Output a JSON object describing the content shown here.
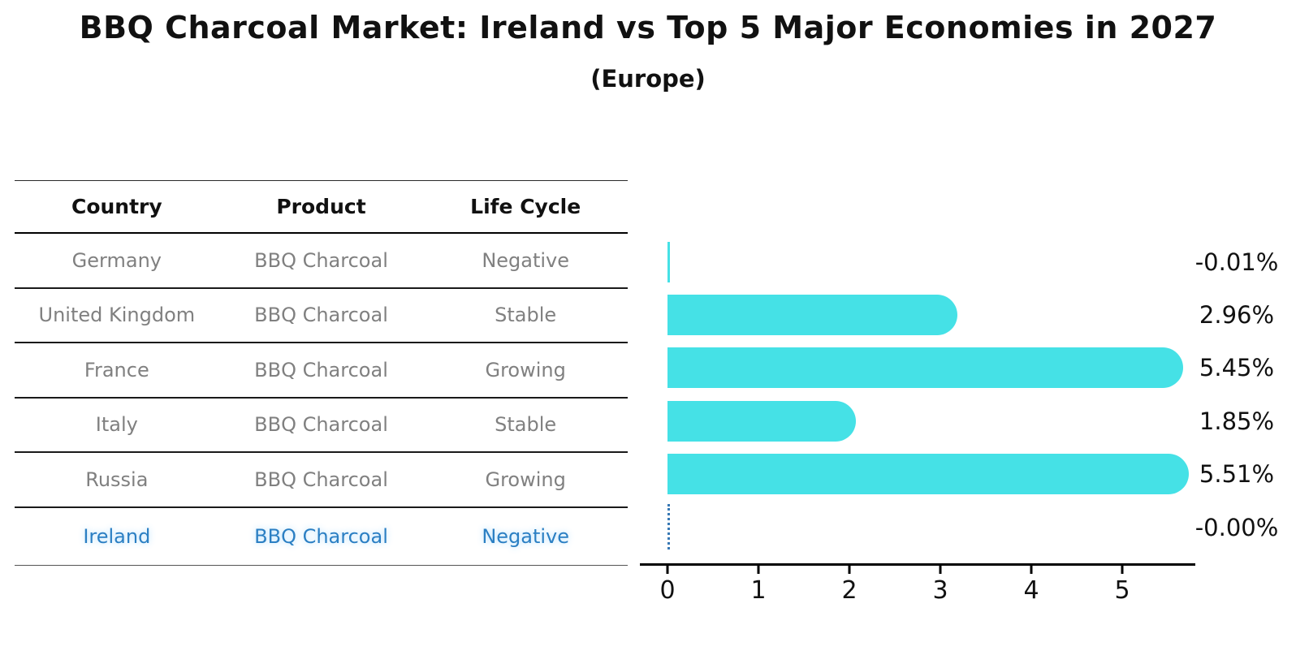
{
  "title": "BBQ Charcoal Market: Ireland vs Top 5 Major Economies in 2027",
  "subtitle": "(Europe)",
  "table": {
    "headers": [
      "Country",
      "Product",
      "Life Cycle"
    ],
    "rows": [
      {
        "country": "Germany",
        "product": "BBQ Charcoal",
        "life_cycle": "Negative"
      },
      {
        "country": "United Kingdom",
        "product": "BBQ Charcoal",
        "life_cycle": "Stable"
      },
      {
        "country": "France",
        "product": "BBQ Charcoal",
        "life_cycle": "Growing"
      },
      {
        "country": "Italy",
        "product": "BBQ Charcoal",
        "life_cycle": "Stable"
      },
      {
        "country": "Russia",
        "product": "BBQ Charcoal",
        "life_cycle": "Growing"
      },
      {
        "country": "Ireland",
        "product": "BBQ Charcoal",
        "life_cycle": "Negative"
      }
    ],
    "highlight_row": "Ireland"
  },
  "chart_data": {
    "type": "bar",
    "orientation": "horizontal",
    "title": "BBQ Charcoal Market: Ireland vs Top 5 Major Economies in 2027",
    "subtitle": "(Europe)",
    "categories": [
      "Germany",
      "United Kingdom",
      "France",
      "Italy",
      "Russia",
      "Ireland"
    ],
    "values": [
      -0.01,
      2.96,
      5.45,
      1.85,
      5.51,
      -0.0
    ],
    "value_labels": [
      "-0.01%",
      "2.96%",
      "5.45%",
      "1.85%",
      "5.51%",
      "-0.00%"
    ],
    "x_ticks": [
      0,
      1,
      2,
      3,
      4,
      5
    ],
    "xlim": [
      -0.3,
      5.8
    ],
    "xlabel": "",
    "ylabel": "",
    "grid": false,
    "legend": false,
    "highlight_index": 5,
    "bar_color": "#45e1e6",
    "highlight_line_color": "#3778b4"
  },
  "colors": {
    "background": "#ffffff",
    "bar": "#45e1e6",
    "table_text": "#808080",
    "highlight_text": "#2b7fc3",
    "axis": "#000000",
    "title_text": "#111111"
  }
}
